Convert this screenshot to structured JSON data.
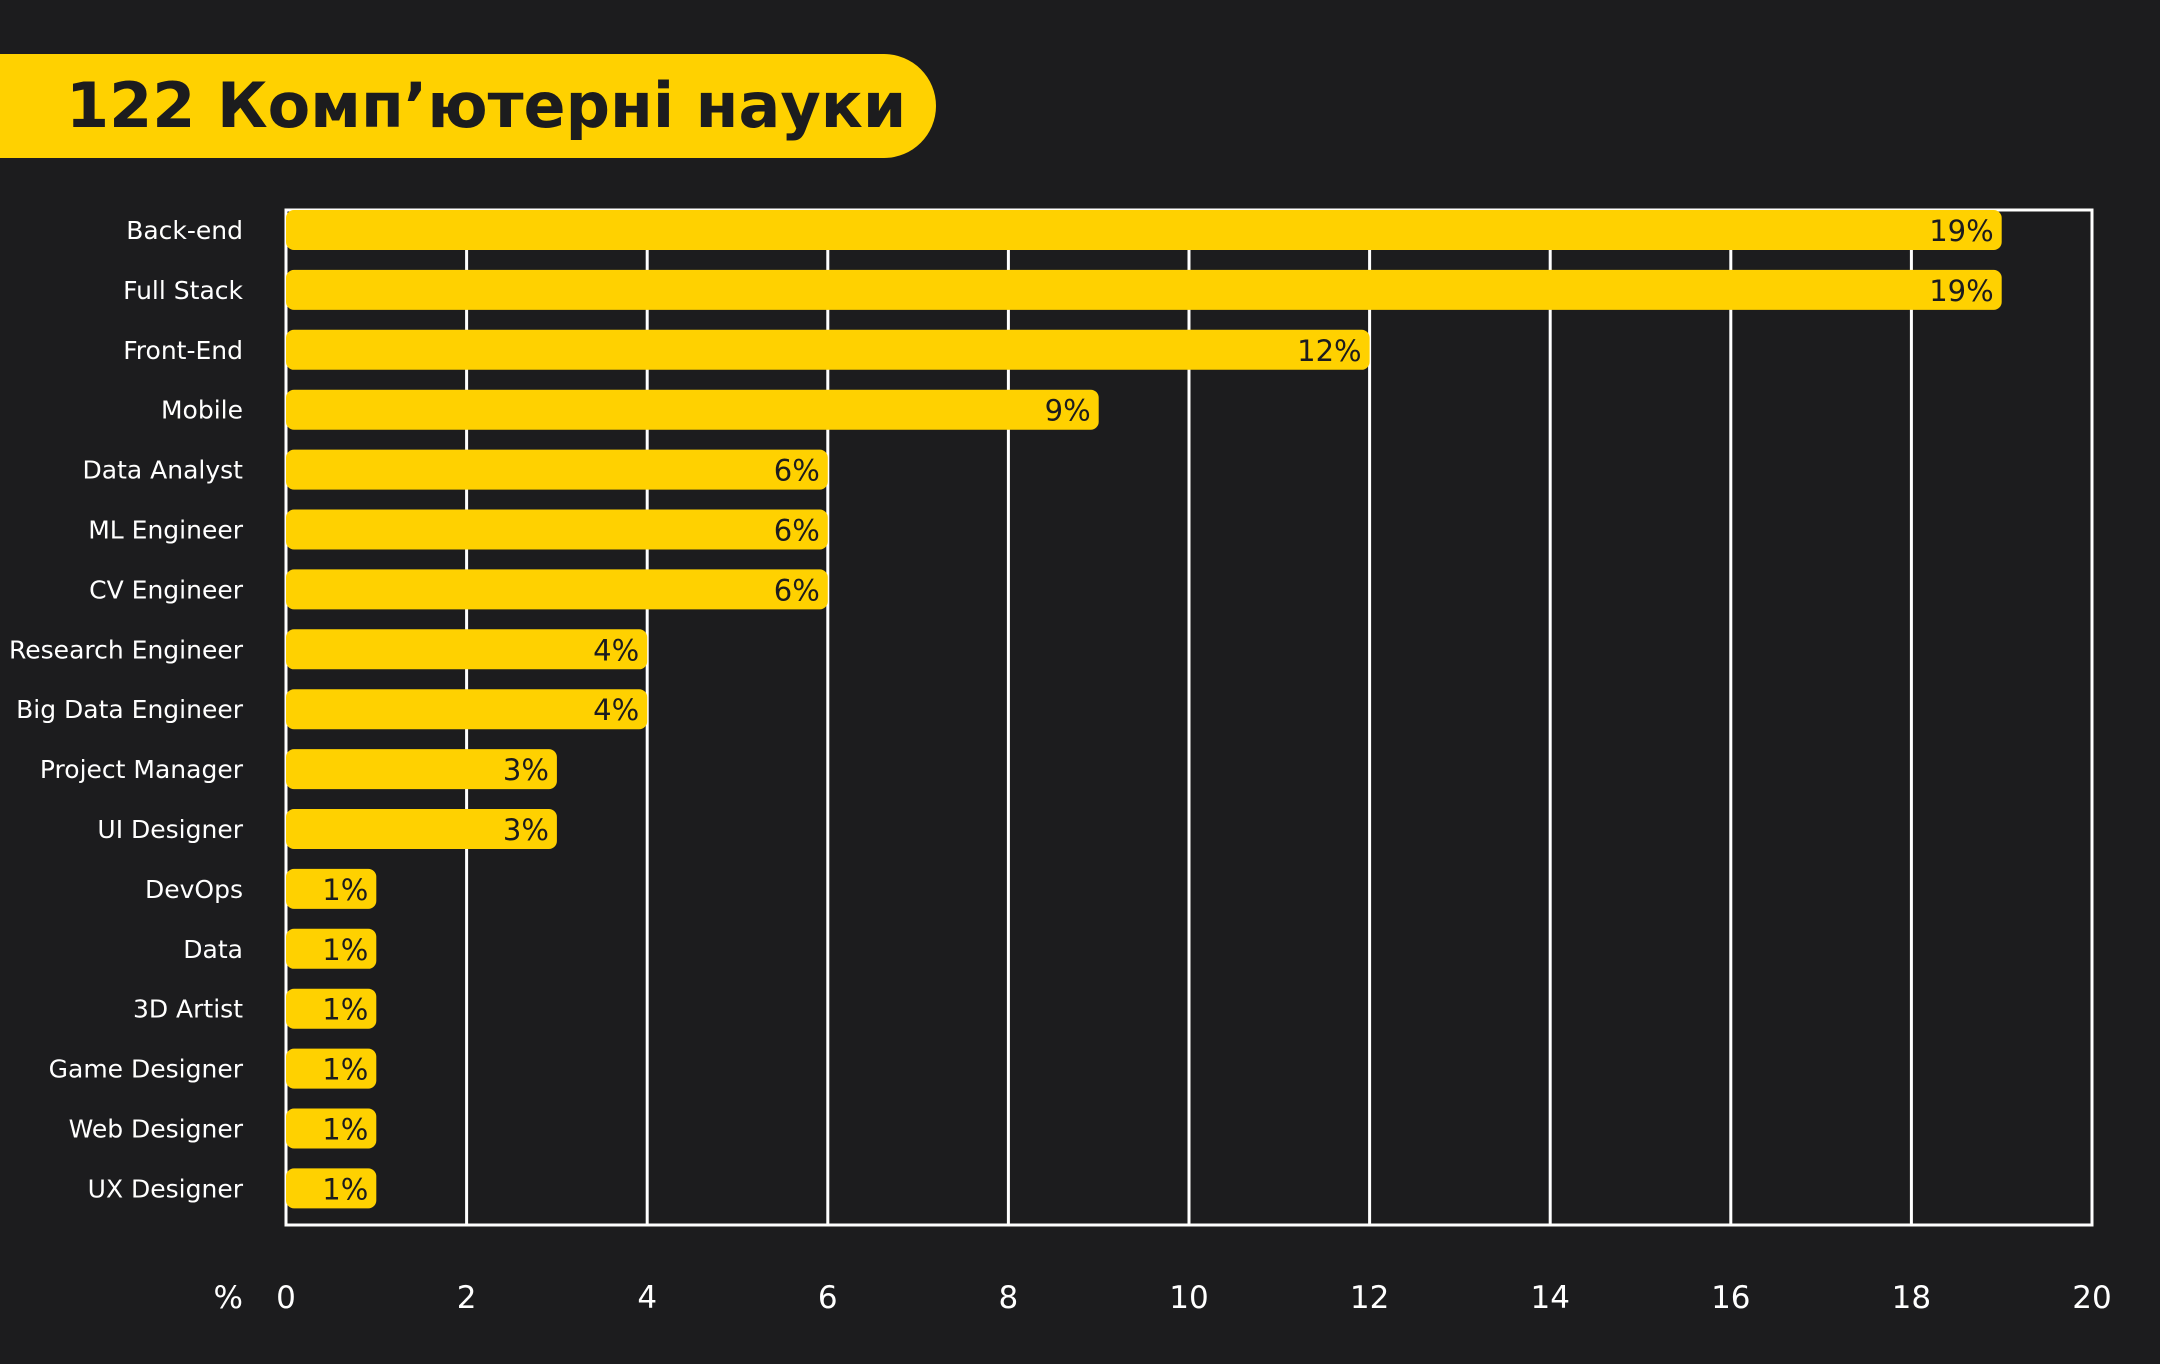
{
  "title": "122 Комп’ютерні науки",
  "colors": {
    "background": "#1c1c1e",
    "accent": "#ffd100",
    "grid": "#ffffff",
    "text": "#ffffff",
    "bar_text": "#1c1c1e"
  },
  "chart_data": {
    "type": "bar",
    "orientation": "horizontal",
    "title": "122 Комп’ютерні науки",
    "xlabel": "%",
    "ylabel": "",
    "xlim": [
      0,
      20
    ],
    "x_ticks": [
      "0",
      "2",
      "4",
      "6",
      "8",
      "10",
      "12",
      "14",
      "16",
      "18",
      "20"
    ],
    "grid": true,
    "categories": [
      "Back-end",
      "Full Stack",
      "Front-End",
      "Mobile",
      "Data Analyst",
      "ML Engineer",
      "CV Engineer",
      "Research Engineer",
      "Big Data Engineer",
      "Project Manager",
      "UI Designer",
      "DevOps",
      "Data",
      "3D Artist",
      "Game Designer",
      "Web Designer",
      "UX Designer"
    ],
    "values": [
      19,
      19,
      12,
      9,
      6,
      6,
      6,
      4,
      4,
      3,
      3,
      1,
      1,
      1,
      1,
      1,
      1
    ],
    "value_labels": [
      "19%",
      "19%",
      "12%",
      "9%",
      "6%",
      "6%",
      "6%",
      "4%",
      "4%",
      "3%",
      "3%",
      "1%",
      "1%",
      "1%",
      "1%",
      "1%",
      "1%"
    ]
  }
}
